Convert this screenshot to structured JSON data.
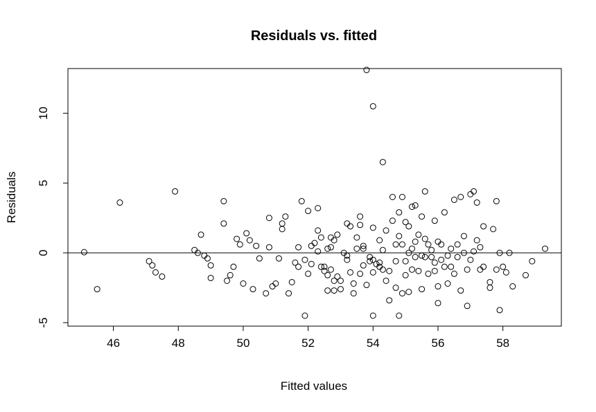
{
  "chart_data": {
    "type": "scatter",
    "title": "Residuals vs. fitted",
    "xlabel": "Fitted values",
    "ylabel": "Residuals",
    "xlim": [
      44.6,
      59.8
    ],
    "ylim": [
      -5.25,
      13.2
    ],
    "xticks": [
      46,
      48,
      50,
      52,
      54,
      56,
      58
    ],
    "yticks": [
      -5,
      0,
      5,
      10
    ],
    "reference_line": {
      "y": 0
    },
    "grid": false,
    "legend": "none",
    "colors": {
      "points": "#000000",
      "background": "#ffffff"
    },
    "points": [
      [
        45.1,
        0.05
      ],
      [
        45.5,
        -2.6
      ],
      [
        46.2,
        3.6
      ],
      [
        47.1,
        -0.6
      ],
      [
        47.2,
        -0.9
      ],
      [
        47.3,
        -1.4
      ],
      [
        47.5,
        -1.7
      ],
      [
        47.9,
        4.4
      ],
      [
        48.5,
        0.2
      ],
      [
        48.6,
        0.0
      ],
      [
        48.7,
        1.3
      ],
      [
        48.8,
        -0.2
      ],
      [
        48.9,
        -0.4
      ],
      [
        49.0,
        -0.9
      ],
      [
        49.0,
        -1.8
      ],
      [
        49.4,
        2.1
      ],
      [
        49.4,
        3.7
      ],
      [
        49.5,
        -2.0
      ],
      [
        49.6,
        -1.6
      ],
      [
        49.7,
        -1.0
      ],
      [
        49.8,
        1.0
      ],
      [
        49.9,
        0.6
      ],
      [
        50.0,
        -2.2
      ],
      [
        50.1,
        1.4
      ],
      [
        50.2,
        0.9
      ],
      [
        50.3,
        -2.6
      ],
      [
        50.4,
        0.5
      ],
      [
        50.5,
        -0.4
      ],
      [
        50.7,
        -2.9
      ],
      [
        50.8,
        0.4
      ],
      [
        50.8,
        2.5
      ],
      [
        50.9,
        -2.4
      ],
      [
        51.0,
        -2.2
      ],
      [
        51.1,
        -0.4
      ],
      [
        51.2,
        2.1
      ],
      [
        51.2,
        1.7
      ],
      [
        51.3,
        2.6
      ],
      [
        51.4,
        -2.9
      ],
      [
        51.5,
        -2.1
      ],
      [
        51.6,
        -0.7
      ],
      [
        51.7,
        0.4
      ],
      [
        51.7,
        -1.0
      ],
      [
        51.8,
        3.7
      ],
      [
        51.9,
        -0.5
      ],
      [
        51.9,
        -4.5
      ],
      [
        52.0,
        3.0
      ],
      [
        52.0,
        -1.5
      ],
      [
        52.1,
        -0.8
      ],
      [
        52.1,
        0.5
      ],
      [
        52.2,
        0.7
      ],
      [
        52.3,
        3.2
      ],
      [
        52.3,
        0.1
      ],
      [
        52.3,
        1.6
      ],
      [
        52.4,
        -1.0
      ],
      [
        52.4,
        1.1
      ],
      [
        52.5,
        -1.0
      ],
      [
        52.5,
        -1.3
      ],
      [
        52.6,
        0.3
      ],
      [
        52.6,
        -1.6
      ],
      [
        52.6,
        -2.7
      ],
      [
        52.7,
        1.1
      ],
      [
        52.7,
        -1.2
      ],
      [
        52.7,
        0.4
      ],
      [
        52.8,
        0.9
      ],
      [
        52.8,
        -2.0
      ],
      [
        52.8,
        -2.7
      ],
      [
        52.9,
        1.3
      ],
      [
        52.9,
        -1.7
      ],
      [
        53.0,
        -2.0
      ],
      [
        53.0,
        -2.6
      ],
      [
        53.1,
        0.0
      ],
      [
        53.2,
        2.1
      ],
      [
        53.2,
        -0.2
      ],
      [
        53.2,
        -0.5
      ],
      [
        53.3,
        1.9
      ],
      [
        53.3,
        -1.4
      ],
      [
        53.4,
        -2.2
      ],
      [
        53.4,
        -2.9
      ],
      [
        53.5,
        1.1
      ],
      [
        53.5,
        0.3
      ],
      [
        53.6,
        2.6
      ],
      [
        53.6,
        2.0
      ],
      [
        53.6,
        -1.5
      ],
      [
        53.7,
        -0.9
      ],
      [
        53.7,
        0.5
      ],
      [
        53.7,
        0.3
      ],
      [
        53.8,
        13.1
      ],
      [
        53.8,
        -2.3
      ],
      [
        53.9,
        -0.3
      ],
      [
        53.9,
        -0.6
      ],
      [
        54.0,
        10.5
      ],
      [
        54.0,
        1.8
      ],
      [
        54.0,
        -0.5
      ],
      [
        54.0,
        -1.4
      ],
      [
        54.0,
        -4.5
      ],
      [
        54.1,
        -0.8
      ],
      [
        54.2,
        -1.0
      ],
      [
        54.2,
        0.9
      ],
      [
        54.2,
        -0.7
      ],
      [
        54.3,
        6.5
      ],
      [
        54.3,
        0.2
      ],
      [
        54.3,
        -1.2
      ],
      [
        54.4,
        1.6
      ],
      [
        54.4,
        -2.0
      ],
      [
        54.5,
        -1.3
      ],
      [
        54.5,
        -3.4
      ],
      [
        54.6,
        2.3
      ],
      [
        54.6,
        4.0
      ],
      [
        54.7,
        0.6
      ],
      [
        54.7,
        -2.5
      ],
      [
        54.7,
        -0.6
      ],
      [
        54.8,
        2.9
      ],
      [
        54.8,
        1.2
      ],
      [
        54.8,
        -4.5
      ],
      [
        54.9,
        4.0
      ],
      [
        54.9,
        0.6
      ],
      [
        54.9,
        -2.9
      ],
      [
        55.0,
        2.2
      ],
      [
        55.0,
        -0.6
      ],
      [
        55.0,
        -1.6
      ],
      [
        55.1,
        1.9
      ],
      [
        55.1,
        0.0
      ],
      [
        55.1,
        -2.8
      ],
      [
        55.2,
        3.3
      ],
      [
        55.2,
        0.3
      ],
      [
        55.2,
        -1.2
      ],
      [
        55.3,
        0.8
      ],
      [
        55.3,
        -0.3
      ],
      [
        55.3,
        3.4
      ],
      [
        55.4,
        1.3
      ],
      [
        55.4,
        -1.3
      ],
      [
        55.5,
        2.6
      ],
      [
        55.5,
        -0.2
      ],
      [
        55.5,
        -2.6
      ],
      [
        55.6,
        4.4
      ],
      [
        55.6,
        1.0
      ],
      [
        55.6,
        -0.3
      ],
      [
        55.7,
        -1.5
      ],
      [
        55.7,
        0.6
      ],
      [
        55.8,
        0.2
      ],
      [
        55.8,
        -0.3
      ],
      [
        55.9,
        2.3
      ],
      [
        55.9,
        -0.7
      ],
      [
        55.9,
        -1.3
      ],
      [
        56.0,
        0.8
      ],
      [
        56.0,
        -2.4
      ],
      [
        56.0,
        -3.6
      ],
      [
        56.1,
        0.6
      ],
      [
        56.1,
        -0.5
      ],
      [
        56.2,
        2.9
      ],
      [
        56.2,
        -1.0
      ],
      [
        56.3,
        -0.2
      ],
      [
        56.3,
        -2.2
      ],
      [
        56.4,
        -1.0
      ],
      [
        56.4,
        0.3
      ],
      [
        56.5,
        3.8
      ],
      [
        56.5,
        -1.5
      ],
      [
        56.6,
        0.6
      ],
      [
        56.6,
        -0.3
      ],
      [
        56.7,
        4.0
      ],
      [
        56.7,
        -2.7
      ],
      [
        56.8,
        1.2
      ],
      [
        56.8,
        0.0
      ],
      [
        56.9,
        -1.2
      ],
      [
        56.9,
        -3.8
      ],
      [
        57.0,
        4.2
      ],
      [
        57.0,
        -0.5
      ],
      [
        57.1,
        4.4
      ],
      [
        57.1,
        0.1
      ],
      [
        57.2,
        3.6
      ],
      [
        57.2,
        0.9
      ],
      [
        57.3,
        -1.2
      ],
      [
        57.3,
        0.4
      ],
      [
        57.4,
        1.9
      ],
      [
        57.4,
        -1.0
      ],
      [
        57.6,
        -2.1
      ],
      [
        57.6,
        -2.5
      ],
      [
        57.7,
        1.7
      ],
      [
        57.8,
        -1.2
      ],
      [
        57.8,
        3.7
      ],
      [
        57.9,
        -4.1
      ],
      [
        57.9,
        0.0
      ],
      [
        58.0,
        -1.0
      ],
      [
        58.1,
        -1.4
      ],
      [
        58.2,
        0.0
      ],
      [
        58.3,
        -2.4
      ],
      [
        58.7,
        -1.6
      ],
      [
        58.9,
        -0.6
      ],
      [
        59.3,
        0.3
      ]
    ]
  }
}
